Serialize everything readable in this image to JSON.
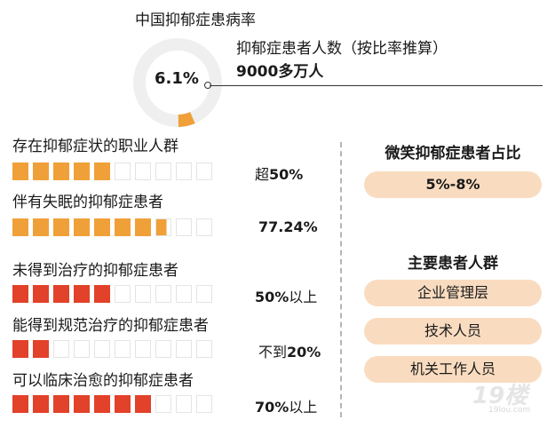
{
  "header": {
    "title": "中国抑郁症患病率",
    "rate": "6.1%",
    "rate_value": 6.1,
    "annotation_line1": "抑郁症患者人数（按比率推算）",
    "annotation_line2": "9000多万人"
  },
  "colors": {
    "orange": "#f0a039",
    "red": "#e2412a",
    "pill": "#f9dcc0",
    "donut_track": "#efefef"
  },
  "chart_data": {
    "type": "bar",
    "max": 100,
    "rows": [
      {
        "label": "存在抑郁症状的职业人群",
        "value": 50,
        "display_pre": "超",
        "display": "50%",
        "display_post": "",
        "color": "orange"
      },
      {
        "label": "伴有失眠的抑郁症患者",
        "value": 77.24,
        "display_pre": "",
        "display": "77.24%",
        "display_post": "",
        "color": "orange"
      },
      {
        "label": "未得到治疗的抑郁症患者",
        "value": 50,
        "display_pre": "",
        "display": "50%",
        "display_post": "以上",
        "color": "red"
      },
      {
        "label": "能得到规范治疗的抑郁症患者",
        "value": 20,
        "display_pre": "不到",
        "display": "20%",
        "display_post": "",
        "color": "red"
      },
      {
        "label": "可以临床治愈的抑郁症患者",
        "value": 70,
        "display_pre": "",
        "display": "70%",
        "display_post": "以上",
        "color": "red"
      }
    ]
  },
  "right": {
    "smile_title": "微笑抑郁症患者占比",
    "smile_value": "5%-8%",
    "group_title": "主要患者人群",
    "groups": [
      "企业管理层",
      "技术人员",
      "机关工作人员"
    ]
  },
  "watermark": {
    "number": "19楼",
    "site": "19lou.com"
  }
}
